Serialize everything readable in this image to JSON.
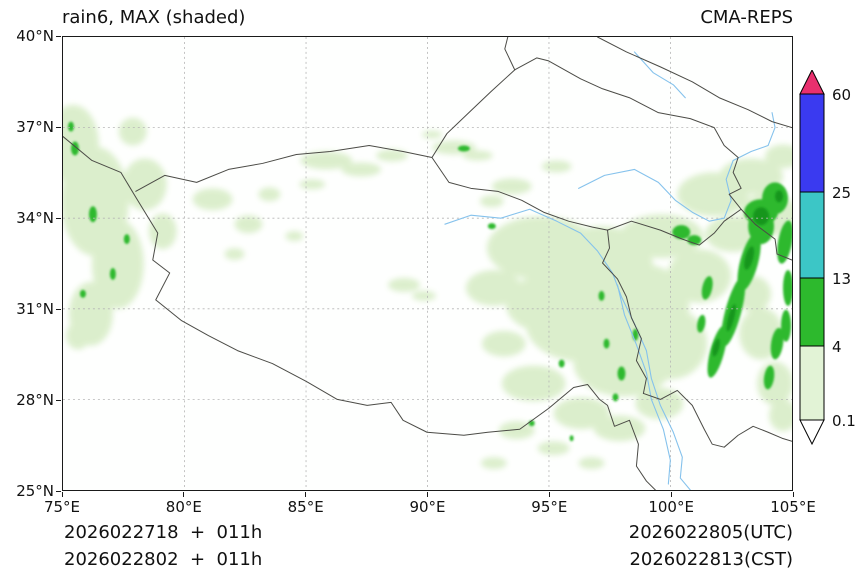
{
  "titles": {
    "left": "rain6, MAX (shaded)",
    "right": "CMA-REPS"
  },
  "axes": {
    "x_tick_labels": [
      "75°E",
      "80°E",
      "85°E",
      "90°E",
      "95°E",
      "100°E",
      "105°E"
    ],
    "y_tick_labels": [
      "40°N",
      "37°N",
      "34°N",
      "31°N",
      "28°N",
      "25°N"
    ]
  },
  "colorbar": {
    "labels": [
      "60",
      "25",
      "13",
      "4",
      "0.1"
    ],
    "colors": {
      "over": "#e8306e",
      "b25_60": "#3a3af0",
      "b13_25": "#3cc6c6",
      "b4_13": "#2db92d",
      "b01_4": "#e2f3d6",
      "under": "#ffffff"
    }
  },
  "map": {
    "colors": {
      "light_precip": "#daeeca",
      "moderate_precip": "#2db92d",
      "heavy_core": "#15961f",
      "river": "#85c2ec",
      "boundary": "#4b4b46",
      "grid": "#b5b5b5"
    }
  },
  "footer": {
    "init_line1": "2026022718  +  011h",
    "init_line2": "2026022802  +  011h",
    "valid_line1": "2026022805(UTC)",
    "valid_line2": "2026022813(CST)"
  },
  "chart_data": {
    "type": "heatmap",
    "title": "rain6, MAX (shaded)",
    "model": "CMA-REPS",
    "x_axis": {
      "ticks": [
        "75°E",
        "80°E",
        "85°E",
        "90°E",
        "95°E",
        "100°E",
        "105°E"
      ],
      "range": [
        "75°E",
        "105°E"
      ]
    },
    "y_axis": {
      "ticks": [
        "25°N",
        "28°N",
        "31°N",
        "34°N",
        "37°N",
        "40°N"
      ],
      "range": [
        "25°N",
        "40°N"
      ]
    },
    "grid": true,
    "legend_position": "right",
    "colorbar_levels": [
      0.1,
      4,
      13,
      25,
      60
    ],
    "colorbar_colors": [
      "#ffffff",
      "#e2f3d6",
      "#2db92d",
      "#3cc6c6",
      "#3a3af0",
      "#e8306e"
    ],
    "init_times": [
      "2026022718  +  011h",
      "2026022802  +  011h"
    ],
    "valid_times": [
      "2026022805(UTC)",
      "2026022813(CST)"
    ],
    "shaded_regions": [
      {
        "region": "western edge 75–79°E, 30–38°N",
        "value_mm": "0.1–4 widespread, isolated 4–13 specks"
      },
      {
        "region": "central plateau patches 84–92°E, 31–36.5°N",
        "value_mm": "0.1–4 scattered"
      },
      {
        "region": "southeastern plateau 92–101°E, 26–34°N",
        "value_mm": "0.1–4 widespread with scattered 4–13"
      },
      {
        "region": "eastern rim band 101–105°E, 28–35°N",
        "value_mm": "4–13 band with embedded heavier cores"
      },
      {
        "region": "northeast 100–105°E, 33.5–36.5°N",
        "value_mm": "0.1–4 with 4–13 patches"
      }
    ]
  }
}
